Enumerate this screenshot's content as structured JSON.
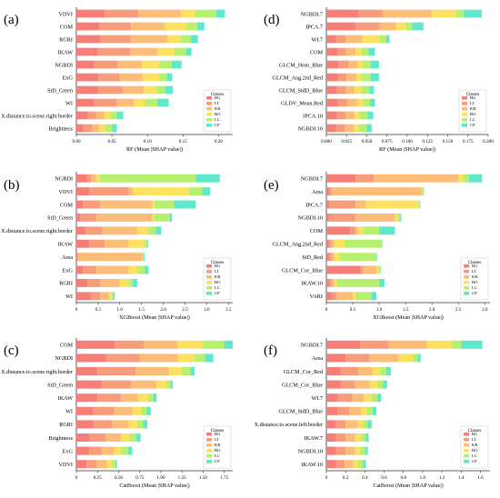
{
  "figure": {
    "series_colors": {
      "BG": "#f57e79",
      "LT": "#f79d7c",
      "KR": "#fbbd78",
      "BO": "#fde160",
      "LC": "#b7ef6e",
      "CP": "#5fe8cb"
    },
    "legend_title": "Classes"
  },
  "chart_data": [
    {
      "panel_label": "(a)",
      "type": "bar",
      "orientation": "horizontal",
      "stacked": true,
      "categories": [
        "VDVI",
        "COM",
        "RGRI",
        "IKAW",
        "NGBDI",
        "ExG",
        "StD_Green",
        "WI",
        "X.distance.to.scene.right.border",
        "Brightness"
      ],
      "series": [
        {
          "name": "BG",
          "values": [
            0.04,
            0.032,
            0.034,
            0.03,
            0.025,
            0.031,
            0.03,
            0.025,
            0.016,
            0.01
          ]
        },
        {
          "name": "LT",
          "values": [
            0.047,
            0.045,
            0.042,
            0.046,
            0.033,
            0.03,
            0.035,
            0.032,
            0.012,
            0.012
          ]
        },
        {
          "name": "KR",
          "values": [
            0.06,
            0.048,
            0.052,
            0.038,
            0.034,
            0.032,
            0.03,
            0.024,
            0.012,
            0.01
          ]
        },
        {
          "name": "BO",
          "values": [
            0.02,
            0.03,
            0.018,
            0.024,
            0.024,
            0.024,
            0.018,
            0.015,
            0.008,
            0.008
          ]
        },
        {
          "name": "LC",
          "values": [
            0.03,
            0.015,
            0.015,
            0.016,
            0.018,
            0.01,
            0.012,
            0.018,
            0.009,
            0.01
          ]
        },
        {
          "name": "CP",
          "values": [
            0.012,
            0.01,
            0.01,
            0.008,
            0.014,
            0.008,
            0.011,
            0.016,
            0.009,
            0.007
          ]
        }
      ],
      "xlabel": "RF (Mean |SHAP value|)",
      "xlim": [
        0,
        0.22
      ],
      "xticks": [
        0.0,
        0.05,
        0.1,
        0.15,
        0.2
      ],
      "xtick_labels": [
        "0.00",
        "0.05",
        "0.10",
        "0.15",
        "0.20"
      ],
      "legend_title": "Classes",
      "legend": [
        "BG",
        "LT",
        "KR",
        "BO",
        "LC",
        "CP"
      ]
    },
    {
      "panel_label": "(b)",
      "type": "bar",
      "orientation": "horizontal",
      "stacked": true,
      "categories": [
        "NGBDI",
        "VDVI",
        "COM",
        "StD_Green",
        "X.distance.to.scene.right.border",
        "IKAW",
        "Area",
        "ExG",
        "RGRI",
        "WI"
      ],
      "series": [
        {
          "name": "BG",
          "values": [
            0.25,
            0.3,
            0.15,
            0.1,
            0.2,
            0.3,
            0.02,
            0.15,
            0.25,
            0.35
          ]
        },
        {
          "name": "LT",
          "values": [
            0.1,
            0.9,
            0.4,
            0.35,
            0.4,
            0.35,
            0.02,
            0.3,
            0.3,
            0.2
          ]
        },
        {
          "name": "KR",
          "values": [
            0.1,
            0.1,
            1.2,
            1.3,
            0.8,
            0.55,
            1.48,
            0.75,
            0.45,
            0.2
          ]
        },
        {
          "name": "BO",
          "values": [
            0.1,
            1.3,
            0.05,
            0.05,
            0.25,
            0.38,
            0.02,
            0.2,
            0.2,
            0.05
          ]
        },
        {
          "name": "LC",
          "values": [
            2.2,
            0.3,
            0.45,
            0.35,
            0.18,
            0.05,
            0.01,
            0.18,
            0.1,
            0.05
          ]
        },
        {
          "name": "CP",
          "values": [
            0.55,
            0.18,
            0.5,
            0.05,
            0.12,
            0.02,
            0.02,
            0.08,
            0.1,
            0.03
          ]
        }
      ],
      "xlabel": "XGBoost (Mean |SHAP value|)",
      "xlim": [
        0,
        3.6
      ],
      "xticks": [
        0,
        0.5,
        1.0,
        1.5,
        2.0,
        2.5,
        3.0,
        3.5
      ],
      "xtick_labels": [
        "0",
        "0.5",
        "1.0",
        "1.5",
        "2.0",
        "2.5",
        "3.0",
        "3.5"
      ],
      "legend_title": "Classes",
      "legend": [
        "BG",
        "LT",
        "KR",
        "BO",
        "LC",
        "CP"
      ]
    },
    {
      "panel_label": "(c)",
      "type": "bar",
      "orientation": "horizontal",
      "stacked": true,
      "categories": [
        "COM",
        "NGBDI",
        "X.distance.to.scene.right.border",
        "StD_Green",
        "IKAW",
        "WI",
        "RGRI",
        "Brightness",
        "ExG",
        "VDVI"
      ],
      "series": [
        {
          "name": "BG",
          "values": [
            0.45,
            0.35,
            0.25,
            0.3,
            0.25,
            0.2,
            0.2,
            0.15,
            0.15,
            0.12
          ]
        },
        {
          "name": "LT",
          "values": [
            0.35,
            0.4,
            0.45,
            0.35,
            0.28,
            0.25,
            0.22,
            0.2,
            0.15,
            0.12
          ]
        },
        {
          "name": "KR",
          "values": [
            0.4,
            0.45,
            0.4,
            0.3,
            0.2,
            0.22,
            0.2,
            0.18,
            0.15,
            0.12
          ]
        },
        {
          "name": "BO",
          "values": [
            0.3,
            0.2,
            0.15,
            0.12,
            0.12,
            0.1,
            0.1,
            0.1,
            0.08,
            0.06
          ]
        },
        {
          "name": "LC",
          "values": [
            0.25,
            0.12,
            0.1,
            0.05,
            0.06,
            0.06,
            0.07,
            0.08,
            0.08,
            0.04
          ]
        },
        {
          "name": "CP",
          "values": [
            0.1,
            0.1,
            0.05,
            0.02,
            0.04,
            0.05,
            0.05,
            0.05,
            0.05,
            0.02
          ]
        }
      ],
      "xlabel": "CatBoost (Mean |SHAP value|)",
      "xlim": [
        0,
        1.85
      ],
      "xticks": [
        0,
        0.25,
        0.5,
        0.75,
        1.0,
        1.25,
        1.5,
        1.75
      ],
      "xtick_labels": [
        "0",
        "0.25",
        "0.50",
        "0.75",
        "1.00",
        "1.25",
        "1.50",
        "1.75"
      ],
      "legend_title": "Classes",
      "legend": [
        "BG",
        "LT",
        "KR",
        "BO",
        "LC",
        "CP"
      ]
    },
    {
      "panel_label": "(d)",
      "type": "bar",
      "orientation": "horizontal",
      "stacked": true,
      "categories": [
        "NGBDI.7",
        "IPCA.7",
        "WI.7",
        "COM",
        "GLCM_Hom_Blue",
        "GLCM_Ang.2nd_Red",
        "GLCM_StdD_Blue",
        "GLDV_Mean.Red",
        "IPCA.10",
        "NGBDI.10"
      ],
      "series": [
        {
          "name": "BG",
          "values": [
            0.04,
            0.036,
            0.012,
            0.014,
            0.015,
            0.014,
            0.013,
            0.014,
            0.013,
            0.012
          ]
        },
        {
          "name": "LT",
          "values": [
            0.03,
            0.03,
            0.012,
            0.01,
            0.012,
            0.011,
            0.011,
            0.012,
            0.011,
            0.011
          ]
        },
        {
          "name": "KR",
          "values": [
            0.06,
            0.02,
            0.02,
            0.012,
            0.012,
            0.012,
            0.011,
            0.012,
            0.011,
            0.011
          ]
        },
        {
          "name": "BO",
          "values": [
            0.03,
            0.012,
            0.022,
            0.008,
            0.006,
            0.006,
            0.008,
            0.008,
            0.006,
            0.006
          ]
        },
        {
          "name": "LC",
          "values": [
            0.01,
            0.008,
            0.008,
            0.008,
            0.01,
            0.012,
            0.01,
            0.008,
            0.01,
            0.01
          ]
        },
        {
          "name": "CP",
          "values": [
            0.022,
            0.014,
            0.004,
            0.008,
            0.01,
            0.01,
            0.006,
            0.006,
            0.007,
            0.006
          ]
        }
      ],
      "xlabel": "RF (Mean |SHAP value|)",
      "xlim": [
        0,
        0.2
      ],
      "xticks": [
        0.0,
        0.025,
        0.05,
        0.075,
        0.1,
        0.125,
        0.15,
        0.175,
        0.2
      ],
      "xtick_labels": [
        "0.000",
        "0.025",
        "0.050",
        "0.075",
        "0.100",
        "0.125",
        "0.150",
        "0.175",
        "0.200"
      ],
      "legend_title": "Classes",
      "legend": [
        "BG",
        "LT",
        "KR",
        "BO",
        "LC",
        "CP"
      ]
    },
    {
      "panel_label": "(e)",
      "type": "bar",
      "orientation": "horizontal",
      "stacked": true,
      "categories": [
        "NGBDI.7",
        "Area",
        "IPCA.7",
        "NGBDI.10",
        "COM",
        "GLCM_Ang.2nd_Red",
        "StD_Red",
        "GLCM_Cor_Blue",
        "IKAW.10",
        "VARI"
      ],
      "series": [
        {
          "name": "BG",
          "values": [
            0.55,
            0.05,
            0.05,
            0.05,
            0.45,
            0.05,
            0.05,
            0.65,
            0.05,
            0.1
          ]
        },
        {
          "name": "LT",
          "values": [
            0.35,
            0.05,
            0.5,
            0.5,
            0.1,
            0.05,
            0.05,
            0.05,
            0.05,
            0.1
          ]
        },
        {
          "name": "KR",
          "values": [
            1.6,
            1.7,
            0.2,
            0.75,
            0.05,
            0.05,
            0.05,
            0.25,
            0.05,
            0.3
          ]
        },
        {
          "name": "BO",
          "values": [
            0.1,
            0.02,
            1.0,
            0.05,
            0.1,
            0.2,
            0.1,
            0.05,
            0.05,
            0.05
          ]
        },
        {
          "name": "LC",
          "values": [
            0.1,
            0.02,
            0.02,
            0.05,
            0.3,
            0.7,
            0.7,
            0.02,
            0.8,
            0.3
          ]
        },
        {
          "name": "CP",
          "values": [
            0.25,
            0.01,
            0.01,
            0.02,
            0.3,
            0.01,
            0.01,
            0.01,
            0.1,
            0.1
          ]
        }
      ],
      "xlabel": "XGBoost (Mean |SHAP value|)",
      "xlim": [
        0,
        3.1
      ],
      "xticks": [
        0,
        0.5,
        1.0,
        1.5,
        2.0,
        2.5,
        3.0
      ],
      "xtick_labels": [
        "0",
        "0.5",
        "1.0",
        "1.5",
        "2.0",
        "2.5",
        "3.0"
      ],
      "legend_title": "Classes",
      "legend": [
        "BG",
        "LT",
        "KR",
        "BO",
        "LC",
        "CP"
      ]
    },
    {
      "panel_label": "(f)",
      "type": "bar",
      "orientation": "horizontal",
      "stacked": true,
      "categories": [
        "NGBDI.7",
        "Area",
        "GLCM_Cor_Red",
        "GLCM_Cor_Blue",
        "WI.7",
        "GLCM_StdD_Blue",
        "X.distance.to.scene.left.border",
        "IKAW.7",
        "NGBDI.10",
        "IKAW.10"
      ],
      "series": [
        {
          "name": "BG",
          "values": [
            0.35,
            0.2,
            0.15,
            0.15,
            0.12,
            0.12,
            0.1,
            0.1,
            0.1,
            0.1
          ]
        },
        {
          "name": "LT",
          "values": [
            0.3,
            0.25,
            0.18,
            0.15,
            0.15,
            0.12,
            0.1,
            0.1,
            0.1,
            0.09
          ]
        },
        {
          "name": "KR",
          "values": [
            0.4,
            0.3,
            0.15,
            0.15,
            0.12,
            0.12,
            0.12,
            0.1,
            0.1,
            0.09
          ]
        },
        {
          "name": "BO",
          "values": [
            0.25,
            0.15,
            0.08,
            0.08,
            0.08,
            0.06,
            0.06,
            0.06,
            0.05,
            0.05
          ]
        },
        {
          "name": "LC",
          "values": [
            0.1,
            0.05,
            0.06,
            0.06,
            0.06,
            0.06,
            0.05,
            0.05,
            0.05,
            0.05
          ]
        },
        {
          "name": "CP",
          "values": [
            0.22,
            0.03,
            0.05,
            0.04,
            0.04,
            0.04,
            0.04,
            0.03,
            0.03,
            0.03
          ]
        }
      ],
      "xlabel": "CatBoost (Mean |SHAP value|)",
      "xlim": [
        0,
        1.7
      ],
      "xticks": [
        0,
        0.2,
        0.4,
        0.6,
        0.8,
        1.0,
        1.2,
        1.4,
        1.6
      ],
      "xtick_labels": [
        "0",
        "0.2",
        "0.4",
        "0.6",
        "0.8",
        "1.0",
        "1.2",
        "1.4",
        "1.6"
      ],
      "legend_title": "Classes",
      "legend": [
        "BG",
        "LT",
        "KR",
        "BO",
        "LC",
        "CP"
      ]
    }
  ]
}
